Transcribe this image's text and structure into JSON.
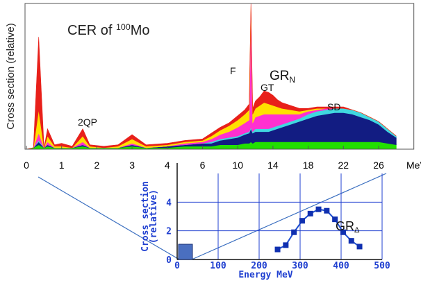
{
  "chart_data": [
    {
      "type": "area",
      "title": [
        "CER of ",
        "100",
        "Mo"
      ],
      "ylabel": "Cross section (relative)",
      "xlabel": "MeV",
      "annotations": [
        [
          "GR",
          "N"
        ],
        "F",
        "GT",
        "2QP",
        "SD"
      ],
      "x": [
        0,
        0.2,
        0.35,
        0.5,
        0.6,
        0.8,
        1,
        1.3,
        1.6,
        1.8,
        2.2,
        2.6,
        3,
        3.4,
        4,
        5,
        6,
        7,
        8,
        9,
        10,
        10.8,
        11.3,
        11.5,
        11.7,
        12,
        12.5,
        13,
        13.5,
        14,
        14.5,
        15,
        16,
        17,
        18,
        19,
        20,
        21,
        22,
        23,
        24,
        25,
        26,
        27,
        28
      ],
      "xlim": [
        0,
        30
      ],
      "xticks": [
        0,
        1,
        2,
        3,
        4,
        6,
        10,
        14,
        18,
        22,
        26
      ],
      "ylim": [
        0,
        100
      ],
      "series": [
        {
          "color": "#22e000",
          "values": [
            0,
            1,
            3,
            1,
            2,
            1,
            1,
            1,
            2,
            1,
            1,
            1,
            2,
            1,
            1,
            2,
            2,
            2,
            3,
            3,
            3,
            4,
            4,
            5,
            4,
            5,
            5,
            5,
            5,
            5,
            5,
            5,
            5,
            5,
            5,
            5,
            5,
            5,
            5,
            5,
            5,
            5,
            5,
            4,
            3
          ]
        },
        {
          "color": "#121c82",
          "values": [
            0,
            0,
            2,
            0,
            1,
            0,
            0,
            0,
            1,
            0,
            0,
            0,
            1,
            0,
            1,
            1,
            2,
            2,
            3,
            4,
            5,
            6,
            7,
            9,
            7,
            7,
            7,
            7,
            7,
            8,
            9,
            10,
            12,
            14,
            16,
            18,
            19,
            20,
            20,
            19,
            17,
            15,
            12,
            8,
            5
          ]
        },
        {
          "color": "#40d8e0",
          "values": [
            0,
            0,
            1,
            0,
            0,
            0,
            0,
            0,
            0,
            0,
            0,
            0,
            0,
            0,
            0,
            0,
            0,
            1,
            1,
            1,
            1,
            1,
            1,
            1,
            1,
            2,
            2,
            2,
            2,
            2,
            2,
            2,
            2,
            2,
            3,
            3,
            3,
            3,
            3,
            3,
            3,
            2,
            2,
            2,
            1
          ]
        },
        {
          "color": "#ff30d0",
          "values": [
            0,
            0,
            5,
            0,
            2,
            0,
            0,
            0,
            2,
            0,
            0,
            0,
            1,
            0,
            0,
            1,
            1,
            2,
            3,
            4,
            6,
            7,
            8,
            80,
            6,
            8,
            9,
            10,
            10,
            9,
            8,
            7,
            5,
            3,
            2,
            1,
            1,
            0,
            0,
            0,
            0,
            0,
            0,
            0,
            0
          ]
        },
        {
          "color": "#ffe000",
          "values": [
            0,
            0,
            16,
            0,
            4,
            1,
            1,
            0,
            4,
            1,
            0,
            1,
            3,
            1,
            1,
            1,
            1,
            2,
            3,
            4,
            5,
            6,
            7,
            3,
            6,
            6,
            7,
            8,
            7,
            6,
            5,
            4,
            3,
            2,
            1,
            1,
            0,
            0,
            0,
            0,
            0,
            0,
            0,
            0,
            0
          ]
        },
        {
          "color": "#e8201a",
          "values": [
            0,
            0,
            50,
            0,
            5,
            1,
            2,
            1,
            5,
            1,
            1,
            1,
            3,
            1,
            1,
            1,
            1,
            2,
            2,
            2,
            3,
            3,
            4,
            2,
            4,
            5,
            6,
            8,
            8,
            7,
            5,
            4,
            3,
            2,
            1,
            1,
            1,
            1,
            1,
            0,
            0,
            0,
            0,
            0,
            0
          ]
        }
      ]
    },
    {
      "type": "line",
      "ylabel": [
        "Cross section",
        "(relative)"
      ],
      "xlabel": "Energy MeV",
      "annotations": [
        [
          "GR",
          "Δ"
        ]
      ],
      "x": [
        245,
        265,
        285,
        305,
        325,
        345,
        365,
        385,
        405,
        425,
        445
      ],
      "values": [
        0.7,
        1.0,
        1.9,
        2.7,
        3.2,
        3.5,
        3.4,
        2.8,
        1.9,
        1.3,
        0.9
      ],
      "color": "#1f4fd0",
      "xlim": [
        0,
        500
      ],
      "xticks": [
        0,
        100,
        200,
        300,
        400,
        500
      ],
      "ylim": [
        0,
        6
      ],
      "yticks": [
        0,
        2,
        4
      ],
      "grid": true
    }
  ]
}
